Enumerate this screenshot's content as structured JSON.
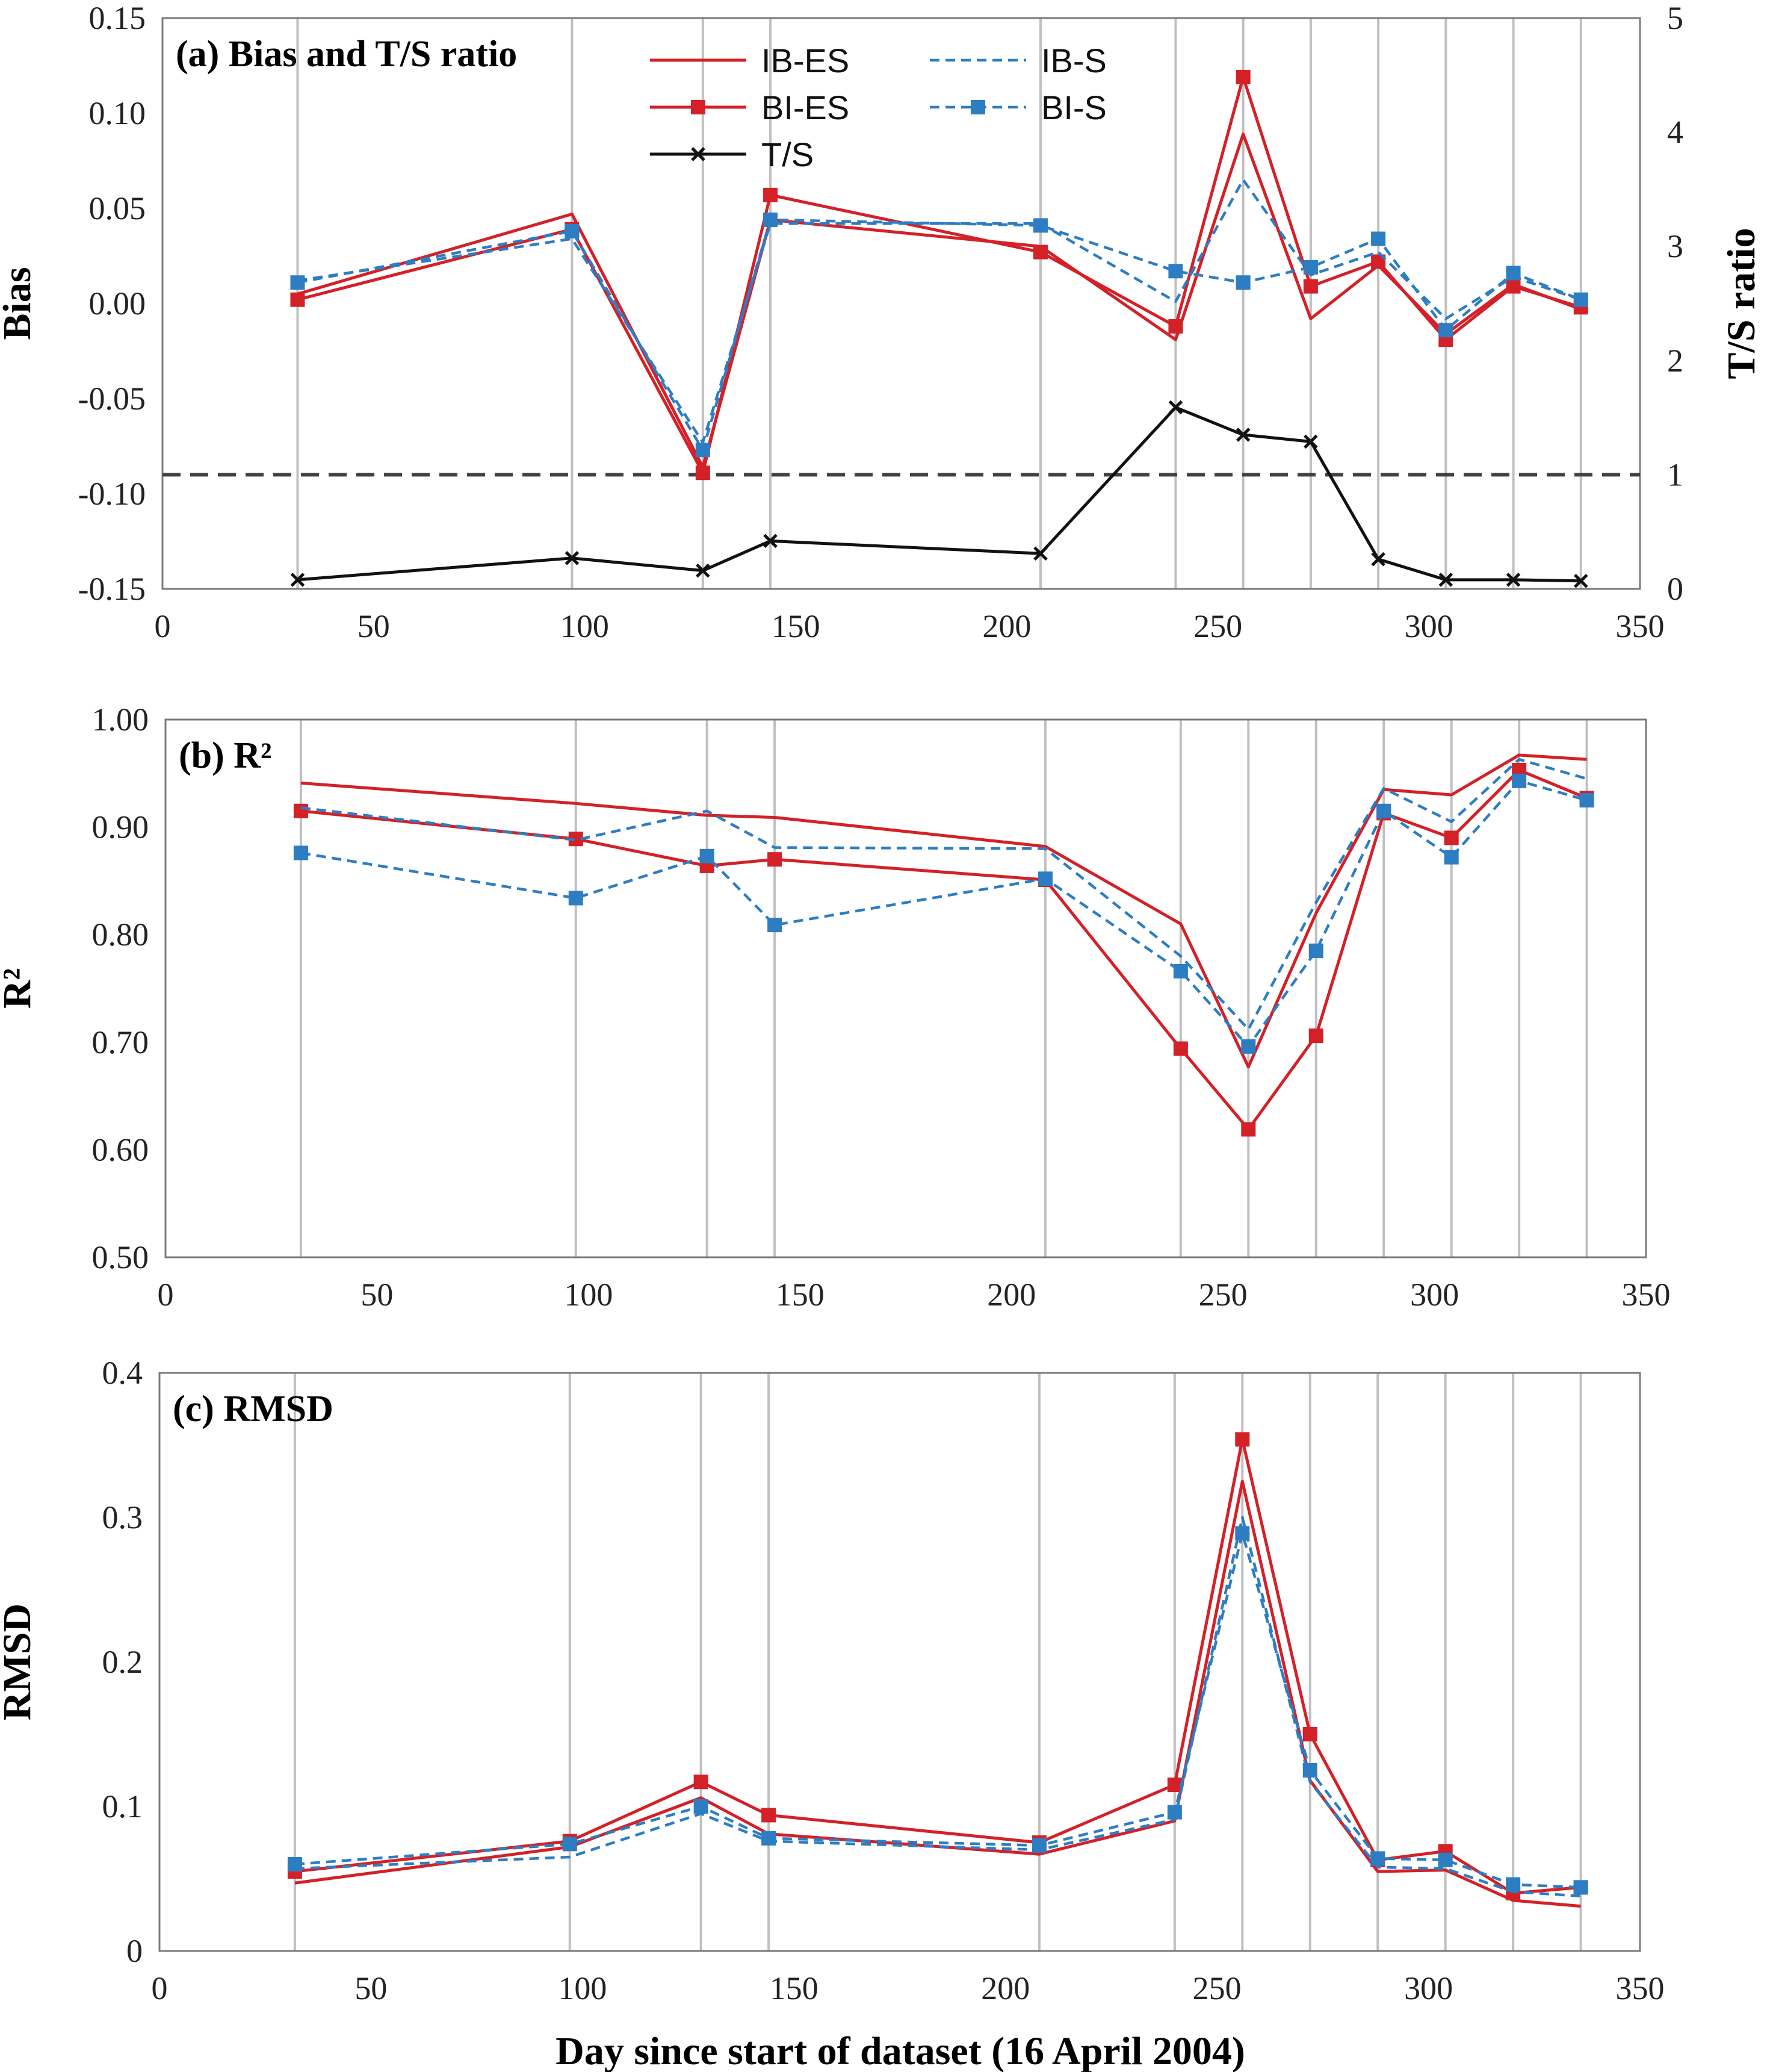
{
  "x_axis_title": "Day since start of dataset (16 April 2004)",
  "legend_entries": [
    "IB-ES",
    "IB-S",
    "BI-ES",
    "BI-S",
    "T/S"
  ],
  "colors": {
    "red": "#d42027",
    "blue": "#2d7dc3",
    "black": "#111111",
    "dashed_ref": "#404040",
    "grid": "#c0c0c0",
    "frame": "#7a7a7a"
  },
  "chart_data": [
    {
      "type": "line",
      "panel": "a",
      "title": "(a) Bias and T/S ratio",
      "xlabel": "",
      "ylabel": "Bias",
      "y2label": "T/S ratio",
      "xlim": [
        0,
        350
      ],
      "ylim": [
        -0.15,
        0.15
      ],
      "y2lim": [
        0,
        5
      ],
      "xticks": [
        "0",
        "50",
        "100",
        "150",
        "200",
        "250",
        "300",
        "350"
      ],
      "yticks": [
        "-0.15",
        "-0.10",
        "-0.05",
        "0.00",
        "0.05",
        "0.10",
        "0.15"
      ],
      "y2ticks": [
        "0",
        "1",
        "2",
        "3",
        "4",
        "5"
      ],
      "x": [
        32,
        97,
        128,
        144,
        208,
        240,
        256,
        272,
        288,
        304,
        320,
        336
      ],
      "grid_days": [
        32,
        97,
        128,
        144,
        208,
        240,
        256,
        272,
        288,
        304,
        320,
        336
      ],
      "reference_line_y2": 1,
      "legend_position": "top",
      "series": [
        {
          "name": "IB-ES",
          "values": [
            0.005,
            0.047,
            -0.086,
            0.044,
            0.03,
            -0.019,
            0.089,
            -0.008,
            0.02,
            -0.016,
            0.01,
            -0.003
          ]
        },
        {
          "name": "BI-ES",
          "values": [
            0.002,
            0.039,
            -0.089,
            0.057,
            0.027,
            -0.012,
            0.119,
            0.009,
            0.022,
            -0.019,
            0.009,
            -0.002
          ]
        },
        {
          "name": "IB-S",
          "values": [
            0.012,
            0.034,
            -0.073,
            0.042,
            0.042,
            0.001,
            0.065,
            0.015,
            0.027,
            -0.008,
            0.014,
            0.002
          ]
        },
        {
          "name": "BI-S",
          "values": [
            0.011,
            0.038,
            -0.077,
            0.044,
            0.041,
            0.017,
            0.011,
            0.019,
            0.034,
            -0.014,
            0.016,
            0.002
          ]
        },
        {
          "name": "T/S",
          "axis": "right",
          "values": [
            0.08,
            0.27,
            0.16,
            0.42,
            0.31,
            1.59,
            1.35,
            1.29,
            0.26,
            0.08,
            0.08,
            0.07
          ]
        }
      ]
    },
    {
      "type": "line",
      "panel": "b",
      "title": "(b) R²",
      "xlabel": "",
      "ylabel": "R²",
      "xlim": [
        0,
        350
      ],
      "ylim": [
        0.5,
        1.0
      ],
      "xticks": [
        "0",
        "50",
        "100",
        "150",
        "200",
        "250",
        "300",
        "350"
      ],
      "yticks": [
        "0.50",
        "0.60",
        "0.70",
        "0.80",
        "0.90",
        "1.00"
      ],
      "x": [
        32,
        97,
        128,
        144,
        208,
        240,
        256,
        272,
        288,
        304,
        320,
        336
      ],
      "grid_days": [
        32,
        97,
        128,
        144,
        208,
        240,
        256,
        272,
        288,
        304,
        320,
        336
      ],
      "series": [
        {
          "name": "IB-ES",
          "values": [
            0.941,
            0.922,
            0.911,
            0.909,
            0.882,
            0.81,
            0.677,
            0.82,
            0.935,
            0.93,
            0.967,
            0.963
          ]
        },
        {
          "name": "BI-ES",
          "values": [
            0.915,
            0.889,
            0.864,
            0.87,
            0.851,
            0.694,
            0.619,
            0.706,
            0.913,
            0.89,
            0.953,
            0.927
          ]
        },
        {
          "name": "IB-S",
          "values": [
            0.918,
            0.888,
            0.915,
            0.881,
            0.88,
            0.78,
            0.712,
            0.83,
            0.936,
            0.905,
            0.963,
            0.945
          ]
        },
        {
          "name": "BI-S",
          "values": [
            0.876,
            0.834,
            0.873,
            0.809,
            0.852,
            0.766,
            0.696,
            0.785,
            0.915,
            0.872,
            0.943,
            0.925
          ]
        }
      ]
    },
    {
      "type": "line",
      "panel": "c",
      "title": "(c) RMSD",
      "xlabel": "Day since start of dataset (16 April 2004)",
      "ylabel": "RMSD",
      "xlim": [
        0,
        350
      ],
      "ylim": [
        0,
        0.4
      ],
      "xticks": [
        "0",
        "50",
        "100",
        "150",
        "200",
        "250",
        "300",
        "350"
      ],
      "yticks": [
        "0",
        "0.1",
        "0.2",
        "0.3",
        "0.4"
      ],
      "x": [
        32,
        97,
        128,
        144,
        208,
        240,
        256,
        272,
        288,
        304,
        320,
        336
      ],
      "grid_days": [
        32,
        97,
        128,
        144,
        208,
        240,
        256,
        272,
        288,
        304,
        320,
        336
      ],
      "series": [
        {
          "name": "IB-ES",
          "values": [
            0.047,
            0.072,
            0.106,
            0.081,
            0.067,
            0.09,
            0.325,
            0.118,
            0.055,
            0.056,
            0.035,
            0.031
          ]
        },
        {
          "name": "BI-ES",
          "values": [
            0.055,
            0.076,
            0.117,
            0.094,
            0.075,
            0.115,
            0.354,
            0.15,
            0.063,
            0.069,
            0.04,
            0.044
          ]
        },
        {
          "name": "IB-S",
          "values": [
            0.057,
            0.065,
            0.095,
            0.076,
            0.07,
            0.091,
            0.3,
            0.117,
            0.058,
            0.057,
            0.041,
            0.038
          ]
        },
        {
          "name": "BI-S",
          "values": [
            0.06,
            0.074,
            0.1,
            0.078,
            0.073,
            0.096,
            0.289,
            0.125,
            0.064,
            0.063,
            0.046,
            0.044
          ]
        }
      ]
    }
  ]
}
